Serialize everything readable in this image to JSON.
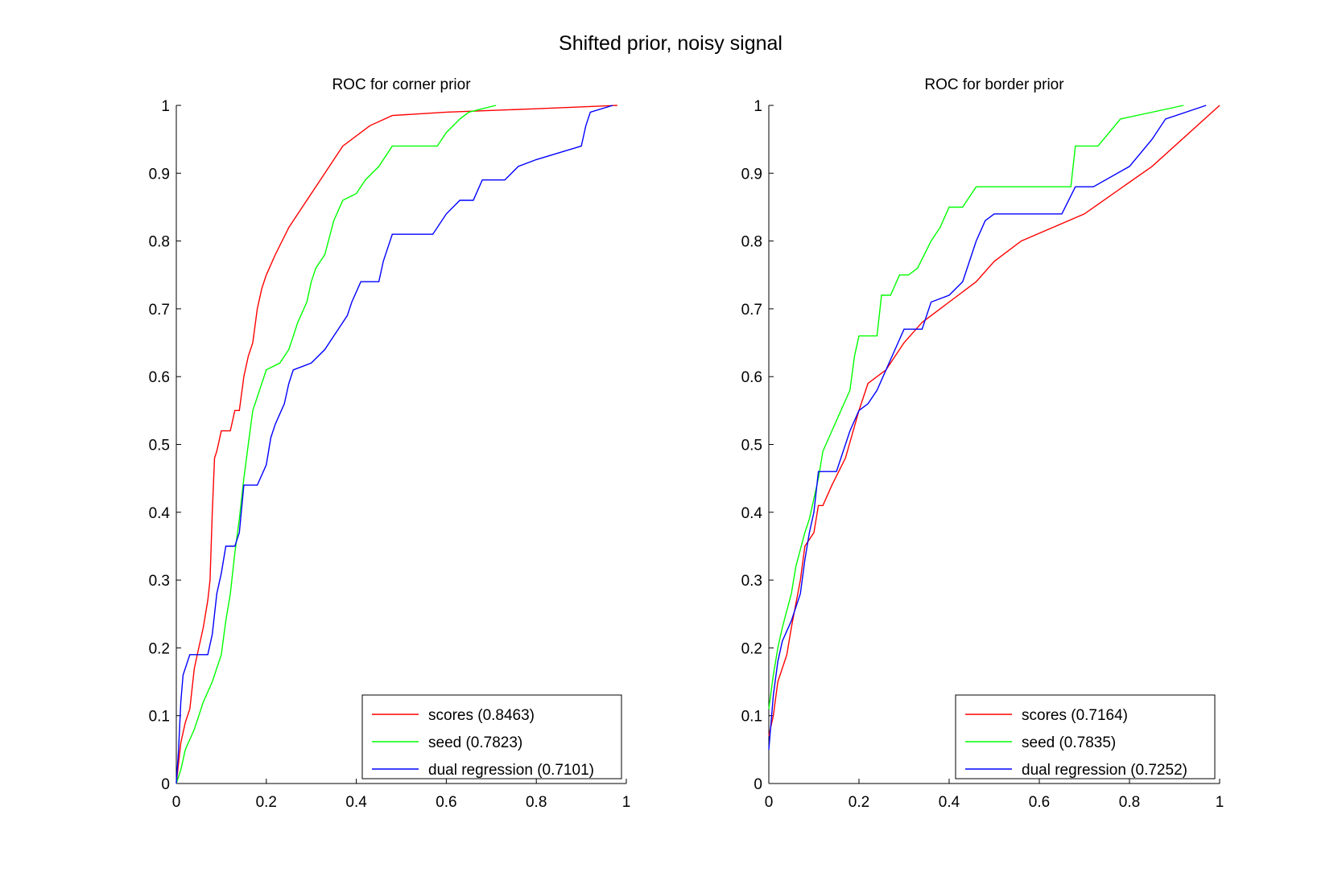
{
  "figure_title": "Shifted prior, noisy signal",
  "chart_data": [
    {
      "type": "line",
      "title": "ROC for corner prior",
      "xlabel": "",
      "ylabel": "",
      "xlim": [
        0,
        1
      ],
      "ylim": [
        0,
        1
      ],
      "xticks": [
        "0",
        "0.2",
        "0.4",
        "0.6",
        "0.8",
        "1"
      ],
      "yticks": [
        "0",
        "0.1",
        "0.2",
        "0.3",
        "0.4",
        "0.5",
        "0.6",
        "0.7",
        "0.8",
        "0.9",
        "1"
      ],
      "grid": false,
      "legend_position": "bottom-right",
      "series": [
        {
          "name": "scores (0.8463)",
          "color": "#ff0000",
          "points": [
            [
              0,
              0
            ],
            [
              0.005,
              0.03
            ],
            [
              0.01,
              0.06
            ],
            [
              0.02,
              0.09
            ],
            [
              0.03,
              0.11
            ],
            [
              0.04,
              0.17
            ],
            [
              0.05,
              0.2
            ],
            [
              0.06,
              0.23
            ],
            [
              0.07,
              0.27
            ],
            [
              0.075,
              0.3
            ],
            [
              0.08,
              0.4
            ],
            [
              0.085,
              0.48
            ],
            [
              0.09,
              0.49
            ],
            [
              0.1,
              0.52
            ],
            [
              0.12,
              0.52
            ],
            [
              0.13,
              0.55
            ],
            [
              0.14,
              0.55
            ],
            [
              0.15,
              0.6
            ],
            [
              0.16,
              0.63
            ],
            [
              0.17,
              0.65
            ],
            [
              0.18,
              0.7
            ],
            [
              0.19,
              0.73
            ],
            [
              0.2,
              0.75
            ],
            [
              0.22,
              0.78
            ],
            [
              0.25,
              0.82
            ],
            [
              0.28,
              0.85
            ],
            [
              0.32,
              0.89
            ],
            [
              0.37,
              0.94
            ],
            [
              0.43,
              0.97
            ],
            [
              0.48,
              0.985
            ],
            [
              0.6,
              0.99
            ],
            [
              0.8,
              0.995
            ],
            [
              0.98,
              1
            ]
          ]
        },
        {
          "name": "seed (0.7823)",
          "color": "#00ff00",
          "points": [
            [
              0,
              0
            ],
            [
              0.01,
              0.02
            ],
            [
              0.02,
              0.05
            ],
            [
              0.04,
              0.08
            ],
            [
              0.06,
              0.12
            ],
            [
              0.08,
              0.15
            ],
            [
              0.1,
              0.19
            ],
            [
              0.11,
              0.24
            ],
            [
              0.12,
              0.28
            ],
            [
              0.13,
              0.34
            ],
            [
              0.14,
              0.39
            ],
            [
              0.15,
              0.45
            ],
            [
              0.16,
              0.5
            ],
            [
              0.17,
              0.55
            ],
            [
              0.18,
              0.57
            ],
            [
              0.19,
              0.59
            ],
            [
              0.2,
              0.61
            ],
            [
              0.23,
              0.62
            ],
            [
              0.25,
              0.64
            ],
            [
              0.27,
              0.68
            ],
            [
              0.29,
              0.71
            ],
            [
              0.3,
              0.74
            ],
            [
              0.31,
              0.76
            ],
            [
              0.33,
              0.78
            ],
            [
              0.35,
              0.83
            ],
            [
              0.37,
              0.86
            ],
            [
              0.4,
              0.87
            ],
            [
              0.42,
              0.89
            ],
            [
              0.45,
              0.91
            ],
            [
              0.48,
              0.94
            ],
            [
              0.58,
              0.94
            ],
            [
              0.6,
              0.96
            ],
            [
              0.63,
              0.98
            ],
            [
              0.65,
              0.99
            ],
            [
              0.71,
              1
            ]
          ]
        },
        {
          "name": "dual regression (0.7101)",
          "color": "#0000ff",
          "points": [
            [
              0,
              0
            ],
            [
              0.005,
              0.05
            ],
            [
              0.01,
              0.12
            ],
            [
              0.015,
              0.16
            ],
            [
              0.03,
              0.19
            ],
            [
              0.07,
              0.19
            ],
            [
              0.08,
              0.22
            ],
            [
              0.09,
              0.28
            ],
            [
              0.1,
              0.31
            ],
            [
              0.11,
              0.35
            ],
            [
              0.13,
              0.35
            ],
            [
              0.14,
              0.37
            ],
            [
              0.15,
              0.44
            ],
            [
              0.18,
              0.44
            ],
            [
              0.2,
              0.47
            ],
            [
              0.21,
              0.51
            ],
            [
              0.22,
              0.53
            ],
            [
              0.24,
              0.56
            ],
            [
              0.25,
              0.59
            ],
            [
              0.26,
              0.61
            ],
            [
              0.3,
              0.62
            ],
            [
              0.33,
              0.64
            ],
            [
              0.34,
              0.65
            ],
            [
              0.36,
              0.67
            ],
            [
              0.38,
              0.69
            ],
            [
              0.39,
              0.71
            ],
            [
              0.41,
              0.74
            ],
            [
              0.45,
              0.74
            ],
            [
              0.46,
              0.77
            ],
            [
              0.48,
              0.81
            ],
            [
              0.57,
              0.81
            ],
            [
              0.6,
              0.84
            ],
            [
              0.63,
              0.86
            ],
            [
              0.66,
              0.86
            ],
            [
              0.68,
              0.89
            ],
            [
              0.73,
              0.89
            ],
            [
              0.76,
              0.91
            ],
            [
              0.8,
              0.92
            ],
            [
              0.9,
              0.94
            ],
            [
              0.91,
              0.97
            ],
            [
              0.92,
              0.99
            ],
            [
              0.97,
              1
            ]
          ]
        }
      ]
    },
    {
      "type": "line",
      "title": "ROC for border prior",
      "xlabel": "",
      "ylabel": "",
      "xlim": [
        0,
        1
      ],
      "ylim": [
        0,
        1
      ],
      "xticks": [
        "0",
        "0.2",
        "0.4",
        "0.6",
        "0.8",
        "1"
      ],
      "yticks": [
        "0",
        "0.1",
        "0.2",
        "0.3",
        "0.4",
        "0.5",
        "0.6",
        "0.7",
        "0.8",
        "0.9",
        "1"
      ],
      "grid": false,
      "legend_position": "bottom-right",
      "series": [
        {
          "name": "scores (0.7164)",
          "color": "#ff0000",
          "points": [
            [
              0,
              0.07
            ],
            [
              0.01,
              0.1
            ],
            [
              0.02,
              0.15
            ],
            [
              0.04,
              0.19
            ],
            [
              0.05,
              0.23
            ],
            [
              0.07,
              0.3
            ],
            [
              0.08,
              0.35
            ],
            [
              0.1,
              0.37
            ],
            [
              0.11,
              0.41
            ],
            [
              0.12,
              0.41
            ],
            [
              0.14,
              0.44
            ],
            [
              0.17,
              0.48
            ],
            [
              0.2,
              0.55
            ],
            [
              0.22,
              0.59
            ],
            [
              0.26,
              0.61
            ],
            [
              0.3,
              0.65
            ],
            [
              0.34,
              0.68
            ],
            [
              0.4,
              0.71
            ],
            [
              0.46,
              0.74
            ],
            [
              0.5,
              0.77
            ],
            [
              0.56,
              0.8
            ],
            [
              0.7,
              0.84
            ],
            [
              0.85,
              0.91
            ],
            [
              1,
              1
            ]
          ]
        },
        {
          "name": "seed (0.7835)",
          "color": "#00ff00",
          "points": [
            [
              0,
              0.11
            ],
            [
              0.01,
              0.16
            ],
            [
              0.02,
              0.2
            ],
            [
              0.03,
              0.23
            ],
            [
              0.05,
              0.28
            ],
            [
              0.06,
              0.32
            ],
            [
              0.08,
              0.37
            ],
            [
              0.09,
              0.39
            ],
            [
              0.11,
              0.45
            ],
            [
              0.12,
              0.49
            ],
            [
              0.14,
              0.52
            ],
            [
              0.16,
              0.55
            ],
            [
              0.18,
              0.58
            ],
            [
              0.19,
              0.63
            ],
            [
              0.2,
              0.66
            ],
            [
              0.24,
              0.66
            ],
            [
              0.25,
              0.72
            ],
            [
              0.27,
              0.72
            ],
            [
              0.29,
              0.75
            ],
            [
              0.31,
              0.75
            ],
            [
              0.33,
              0.76
            ],
            [
              0.36,
              0.8
            ],
            [
              0.38,
              0.82
            ],
            [
              0.4,
              0.85
            ],
            [
              0.43,
              0.85
            ],
            [
              0.44,
              0.86
            ],
            [
              0.46,
              0.88
            ],
            [
              0.67,
              0.88
            ],
            [
              0.68,
              0.94
            ],
            [
              0.73,
              0.94
            ],
            [
              0.78,
              0.98
            ],
            [
              0.92,
              1
            ]
          ]
        },
        {
          "name": "dual regression (0.7252)",
          "color": "#0000ff",
          "points": [
            [
              0,
              0.05
            ],
            [
              0.01,
              0.13
            ],
            [
              0.02,
              0.18
            ],
            [
              0.03,
              0.21
            ],
            [
              0.05,
              0.24
            ],
            [
              0.07,
              0.28
            ],
            [
              0.08,
              0.33
            ],
            [
              0.09,
              0.37
            ],
            [
              0.1,
              0.4
            ],
            [
              0.11,
              0.46
            ],
            [
              0.15,
              0.46
            ],
            [
              0.16,
              0.48
            ],
            [
              0.18,
              0.52
            ],
            [
              0.2,
              0.55
            ],
            [
              0.22,
              0.56
            ],
            [
              0.24,
              0.58
            ],
            [
              0.26,
              0.61
            ],
            [
              0.28,
              0.64
            ],
            [
              0.3,
              0.67
            ],
            [
              0.34,
              0.67
            ],
            [
              0.36,
              0.71
            ],
            [
              0.4,
              0.72
            ],
            [
              0.43,
              0.74
            ],
            [
              0.45,
              0.78
            ],
            [
              0.46,
              0.8
            ],
            [
              0.48,
              0.83
            ],
            [
              0.5,
              0.84
            ],
            [
              0.65,
              0.84
            ],
            [
              0.68,
              0.88
            ],
            [
              0.72,
              0.88
            ],
            [
              0.8,
              0.91
            ],
            [
              0.85,
              0.95
            ],
            [
              0.88,
              0.98
            ],
            [
              0.97,
              1
            ]
          ]
        }
      ]
    }
  ]
}
